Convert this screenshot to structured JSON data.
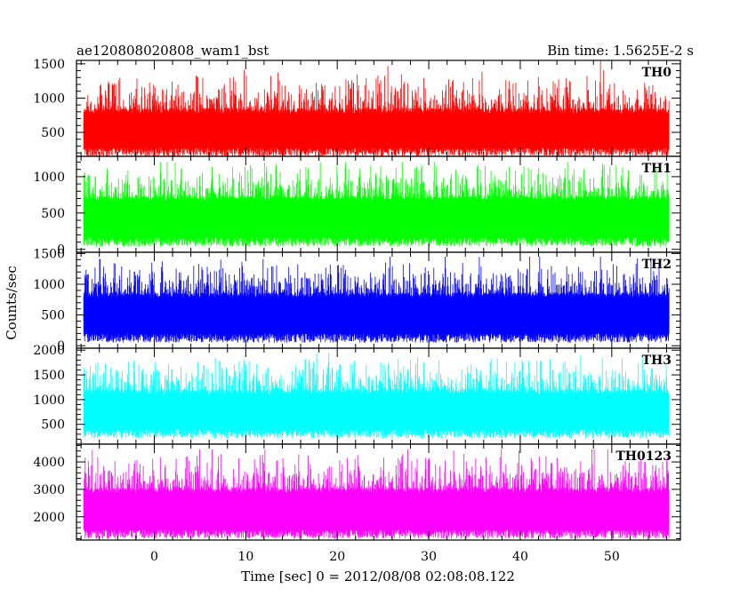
{
  "header": {
    "left_title": "ae120808020808_wam1_bst",
    "right_title": "Bin time: 1.5625E-2 s"
  },
  "chart_data": {
    "type": "line",
    "title": "ae120808020808_wam1_bst",
    "subtitle": "Bin time: 1.5625E-2 s",
    "xlabel": "Time [sec] 0 = 2012/08/08 02:08:08.122",
    "ylabel": "Counts/sec",
    "xlim": [
      -8.5,
      57.5
    ],
    "xticks": [
      0,
      10,
      20,
      30,
      40,
      50
    ],
    "x_minor_step": 2,
    "data_x_range": [
      -7.7,
      56.3
    ],
    "grid": false,
    "panels": [
      {
        "label": "TH0",
        "color": "#ff0000",
        "ylim": [
          150,
          1550
        ],
        "yticks": [
          500,
          1000,
          1500
        ],
        "y_minor_step": 100,
        "baseline": 150,
        "mean": 650,
        "spread": 230,
        "max_spike": 1550
      },
      {
        "label": "TH1",
        "color": "#00ff00",
        "ylim": [
          -40,
          1280
        ],
        "yticks": [
          0,
          500,
          1000
        ],
        "y_minor_step": 100,
        "baseline": 40,
        "mean": 560,
        "spread": 200,
        "max_spike": 1200
      },
      {
        "label": "TH2",
        "color": "#0000ff",
        "ylim": [
          -40,
          1520
        ],
        "yticks": [
          0,
          500,
          1000,
          1500
        ],
        "y_minor_step": 100,
        "baseline": 50,
        "mean": 660,
        "spread": 230,
        "max_spike": 1450
      },
      {
        "label": "TH3",
        "color": "#00ffff",
        "ylim": [
          100,
          2040
        ],
        "yticks": [
          500,
          1000,
          1500,
          2000
        ],
        "y_minor_step": 100,
        "baseline": 220,
        "mean": 940,
        "spread": 300,
        "max_spike": 1950
      },
      {
        "label": "TH0123",
        "color": "#ff00ff",
        "ylim": [
          1150,
          4650
        ],
        "yticks": [
          2000,
          3000,
          4000
        ],
        "y_minor_step": 200,
        "baseline": 1200,
        "mean": 2550,
        "spread": 580,
        "max_spike": 4450
      }
    ]
  }
}
